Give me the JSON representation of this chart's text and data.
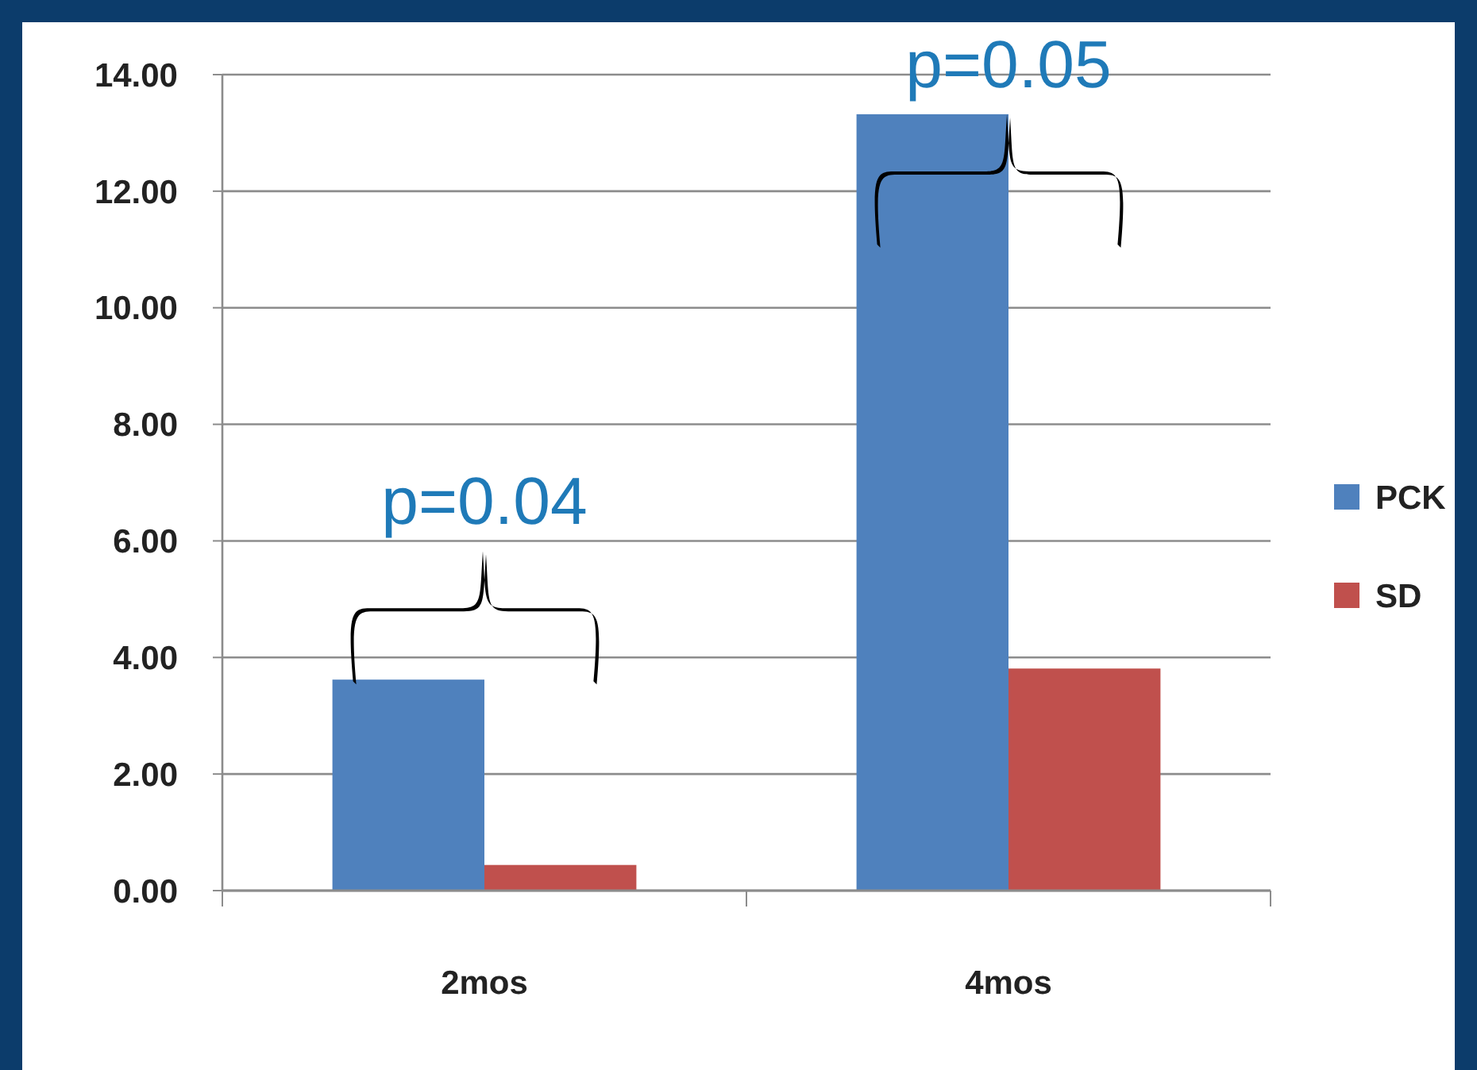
{
  "chart_data": {
    "type": "bar",
    "categories": [
      "2mos",
      "4mos"
    ],
    "series": [
      {
        "name": "PCK",
        "color": "#4f81bd",
        "values": [
          3.62,
          13.32
        ]
      },
      {
        "name": "SD",
        "color": "#c0504d",
        "values": [
          0.44,
          3.81
        ]
      }
    ],
    "ylim": [
      0,
      14
    ],
    "yticks": [
      {
        "value": 0,
        "label": "0.00"
      },
      {
        "value": 2,
        "label": "2.00"
      },
      {
        "value": 4,
        "label": "4.00"
      },
      {
        "value": 6,
        "label": "6.00"
      },
      {
        "value": 8,
        "label": "8.00"
      },
      {
        "value": 10,
        "label": "10.00"
      },
      {
        "value": 12,
        "label": "12.00"
      },
      {
        "value": 14,
        "label": "14.00"
      }
    ],
    "grid": "y",
    "legend": "right",
    "annotations": [
      "p=0.04",
      "p=0.05"
    ]
  }
}
